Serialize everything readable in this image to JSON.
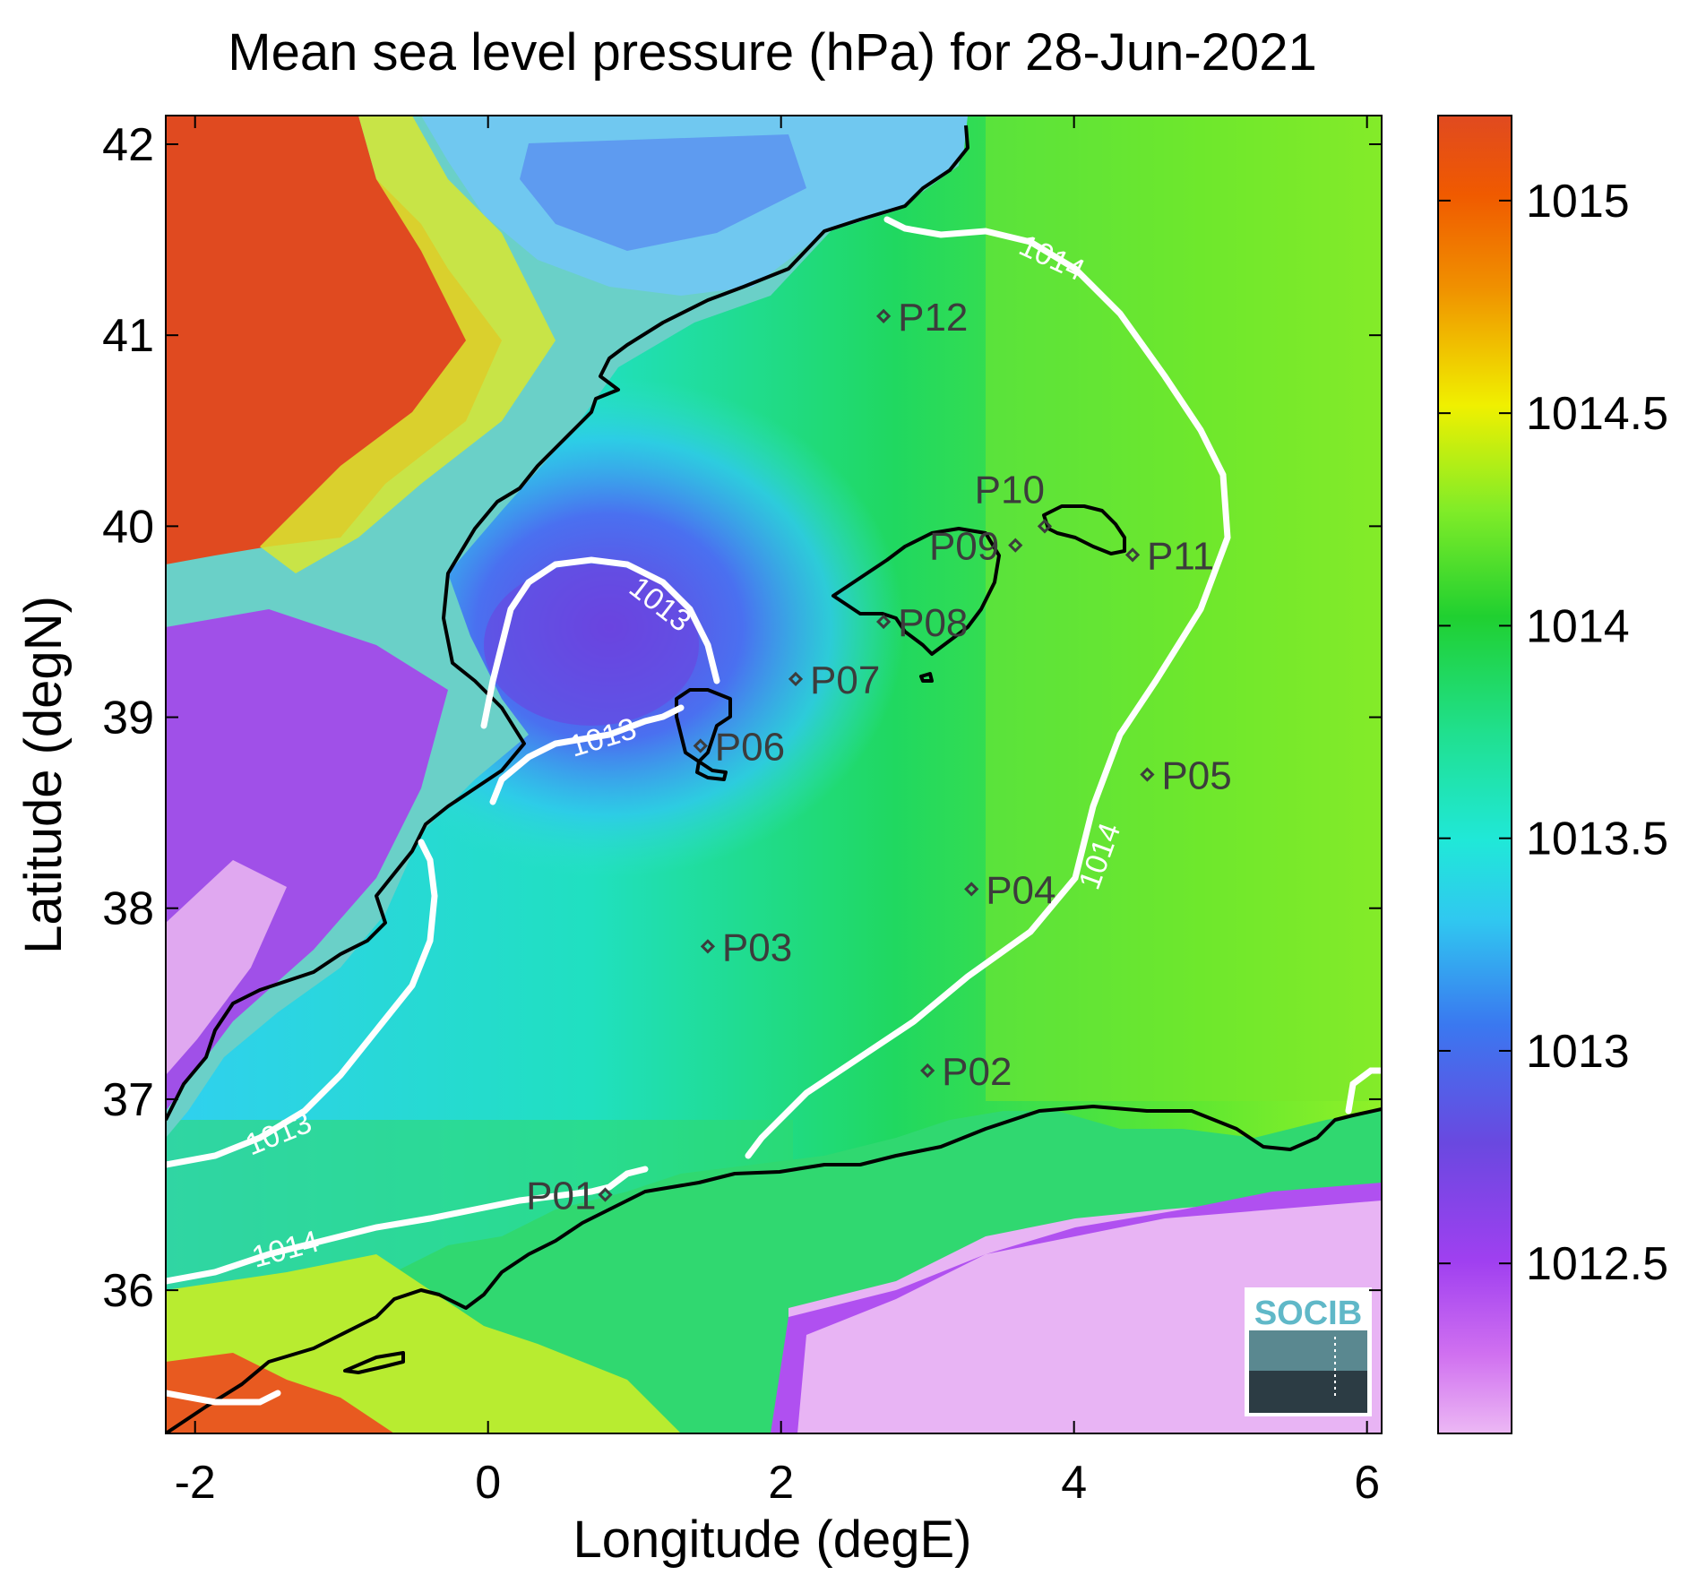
{
  "title": "Mean sea level pressure (hPa) for 28-Jun-2021",
  "xlabel": "Longitude (degE)",
  "ylabel": "Latitude (degN)",
  "xticks": [
    "-2",
    "0",
    "2",
    "4",
    "6"
  ],
  "yticks": [
    "42",
    "41",
    "40",
    "39",
    "38",
    "37",
    "36"
  ],
  "colorbar_ticks": [
    "1015",
    "1014.5",
    "1014",
    "1013.5",
    "1013",
    "1012.5"
  ],
  "colormap": [
    "#e8b4f0",
    "#c040f0",
    "#7a40e0",
    "#3a7af0",
    "#30e0e0",
    "#20d8a0",
    "#20d040",
    "#a0f020",
    "#f0f000",
    "#f0a000",
    "#f06000",
    "#e04020"
  ],
  "contour_labels": [
    "1014",
    "1013",
    "1013",
    "1013",
    "1014",
    "1014"
  ],
  "stations": [
    "P01",
    "P02",
    "P03",
    "P04",
    "P05",
    "P06",
    "P07",
    "P08",
    "P09",
    "P10",
    "P11",
    "P12"
  ],
  "logo_text": "SOCIB",
  "chart_data": {
    "type": "heatmap",
    "title": "Mean sea level pressure (hPa) for 28-Jun-2021",
    "xlabel": "Longitude (degE)",
    "ylabel": "Latitude (degN)",
    "xlim": [
      -2.2,
      6.1
    ],
    "ylim": [
      35.25,
      42.15
    ],
    "clim": [
      1012.1,
      1015.2
    ],
    "contour_levels": [
      1013,
      1014
    ],
    "stations": [
      {
        "name": "P01",
        "lon": 0.8,
        "lat": 36.5
      },
      {
        "name": "P02",
        "lon": 3.0,
        "lat": 37.15
      },
      {
        "name": "P03",
        "lon": 1.5,
        "lat": 37.8
      },
      {
        "name": "P04",
        "lon": 3.3,
        "lat": 38.1
      },
      {
        "name": "P05",
        "lon": 4.5,
        "lat": 38.7
      },
      {
        "name": "P06",
        "lon": 1.45,
        "lat": 38.85
      },
      {
        "name": "P07",
        "lon": 2.1,
        "lat": 39.2
      },
      {
        "name": "P08",
        "lon": 2.7,
        "lat": 39.5
      },
      {
        "name": "P09",
        "lon": 3.6,
        "lat": 39.9
      },
      {
        "name": "P10",
        "lon": 3.8,
        "lat": 40.0
      },
      {
        "name": "P11",
        "lon": 4.4,
        "lat": 39.85
      },
      {
        "name": "P12",
        "lon": 2.7,
        "lat": 41.1
      }
    ]
  }
}
